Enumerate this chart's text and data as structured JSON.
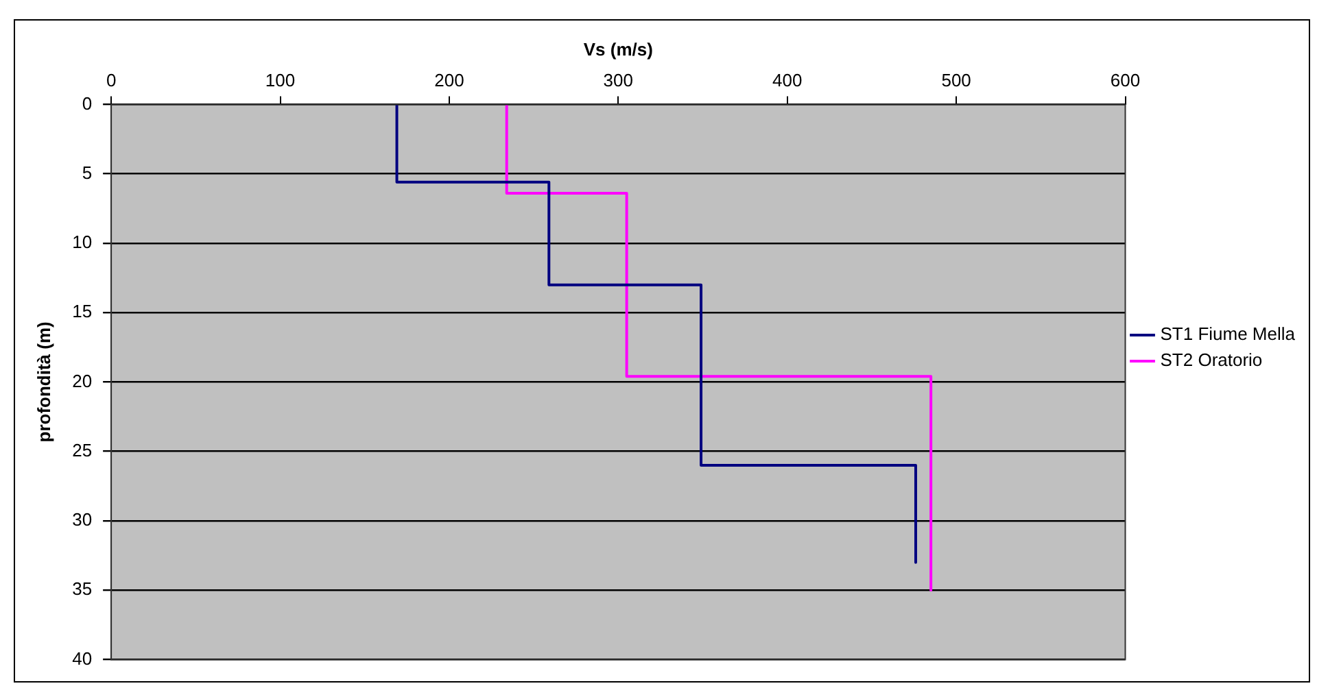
{
  "chart_data": {
    "type": "line",
    "xlabel": "Vs (m/s)",
    "ylabel": "profondità (m)",
    "xlim": [
      0,
      600
    ],
    "xticks": [
      0,
      100,
      200,
      300,
      400,
      500,
      600
    ],
    "ylim": [
      40,
      0
    ],
    "yticks": [
      0,
      5,
      10,
      15,
      20,
      25,
      30,
      35,
      40
    ],
    "grid": "y",
    "legend": "right",
    "marker": "none",
    "line_style": "solid",
    "series": [
      {
        "name": "ST1 Fiume Mella",
        "color": "#000080",
        "x": [
          169,
          169,
          259,
          259,
          349,
          349,
          476,
          476
        ],
        "values": [
          0,
          5.6,
          5.6,
          13,
          13,
          26,
          26,
          33
        ]
      },
      {
        "name": "ST2 Oratorio",
        "color": "#ff00ff",
        "x": [
          234,
          234,
          305,
          305,
          485,
          485
        ],
        "values": [
          0,
          6.4,
          6.4,
          19.6,
          19.6,
          35
        ]
      }
    ]
  }
}
